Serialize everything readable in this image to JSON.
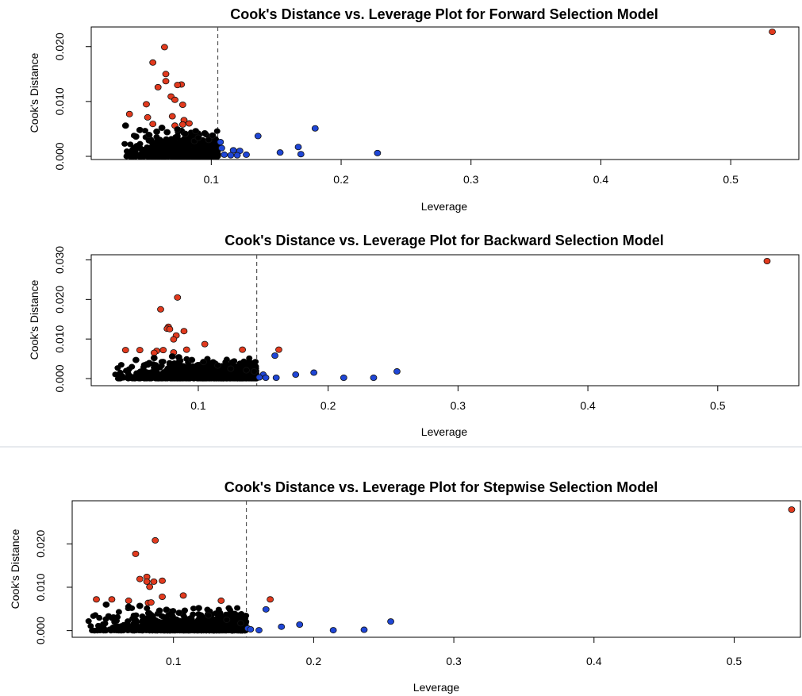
{
  "colors": {
    "point_fill": "#000000",
    "point_stroke": "#000000",
    "high_cook": "#e23a1e",
    "high_leverage": "#1f46d6",
    "cutoff_line": "#555555",
    "separator": "#cfd6dc"
  },
  "chart_data": [
    {
      "type": "scatter",
      "title": "Cook's Distance vs. Leverage Plot for Forward Selection Model",
      "xlabel": "Leverage",
      "ylabel": "Cook's Distance",
      "xlim": [
        0.01,
        0.55
      ],
      "ylim": [
        0.0,
        0.023
      ],
      "x_ticks": [
        0.1,
        0.2,
        0.3,
        0.4,
        0.5
      ],
      "x_tick_labels": [
        "0.1",
        "0.2",
        "0.3",
        "0.4",
        "0.5"
      ],
      "y_ticks": [
        0.0,
        0.01,
        0.02
      ],
      "y_tick_labels": [
        "0.000",
        "0.010",
        "0.020"
      ],
      "leverage_cutoff": 0.105,
      "grid": false,
      "bulk_cloud": {
        "x_range": [
          0.03,
          0.105
        ],
        "y_range": [
          0.0,
          0.005
        ],
        "count": 700
      },
      "series": [
        {
          "group": "high_cook",
          "points": [
            [
              0.532,
              0.0227
            ],
            [
              0.064,
              0.0199
            ],
            [
              0.055,
              0.0171
            ],
            [
              0.065,
              0.015
            ],
            [
              0.065,
              0.0137
            ],
            [
              0.077,
              0.0131
            ],
            [
              0.074,
              0.013
            ],
            [
              0.059,
              0.0126
            ],
            [
              0.069,
              0.0109
            ],
            [
              0.072,
              0.0103
            ],
            [
              0.078,
              0.0094
            ],
            [
              0.05,
              0.0095
            ],
            [
              0.037,
              0.0077
            ],
            [
              0.07,
              0.0073
            ],
            [
              0.051,
              0.0071
            ],
            [
              0.079,
              0.0066
            ],
            [
              0.083,
              0.006
            ],
            [
              0.055,
              0.0059
            ],
            [
              0.078,
              0.0058
            ],
            [
              0.072,
              0.0056
            ]
          ]
        },
        {
          "group": "high_leverage",
          "points": [
            [
              0.18,
              0.0051
            ],
            [
              0.136,
              0.0037
            ],
            [
              0.167,
              0.0017
            ],
            [
              0.107,
              0.0026
            ],
            [
              0.108,
              0.0015
            ],
            [
              0.117,
              0.0011
            ],
            [
              0.122,
              0.001
            ],
            [
              0.153,
              0.0007
            ],
            [
              0.228,
              0.0006
            ],
            [
              0.169,
              0.0004
            ],
            [
              0.11,
              0.0003
            ],
            [
              0.115,
              0.0002
            ],
            [
              0.127,
              0.0003
            ],
            [
              0.12,
              0.0002
            ]
          ]
        },
        {
          "group": "normal",
          "points": [
            [
              0.034,
              0.0056
            ],
            [
              0.045,
              0.0048
            ],
            [
              0.062,
              0.0052
            ],
            [
              0.058,
              0.0045
            ],
            [
              0.066,
              0.0044
            ],
            [
              0.074,
              0.0049
            ],
            [
              0.088,
              0.0046
            ],
            [
              0.095,
              0.0042
            ],
            [
              0.101,
              0.0038
            ],
            [
              0.098,
              0.003
            ],
            [
              0.052,
              0.0039
            ],
            [
              0.042,
              0.0036
            ],
            [
              0.087,
              0.0028
            ],
            [
              0.09,
              0.0034
            ],
            [
              0.08,
              0.0041
            ]
          ]
        }
      ]
    },
    {
      "type": "scatter",
      "title": "Cook's Distance vs. Leverage Plot for Backward Selection Model",
      "xlabel": "Leverage",
      "ylabel": "Cook's Distance",
      "xlim": [
        0.02,
        0.56
      ],
      "ylim": [
        -0.001,
        0.0305
      ],
      "x_ticks": [
        0.1,
        0.2,
        0.3,
        0.4,
        0.5
      ],
      "x_tick_labels": [
        "0.1",
        "0.2",
        "0.3",
        "0.4",
        "0.5"
      ],
      "y_ticks": [
        0.0,
        0.01,
        0.02,
        0.03
      ],
      "y_tick_labels": [
        "0.000",
        "0.010",
        "0.020",
        "0.030"
      ],
      "leverage_cutoff": 0.145,
      "grid": false,
      "bulk_cloud": {
        "x_range": [
          0.033,
          0.145
        ],
        "y_range": [
          0.0,
          0.0055
        ],
        "count": 850
      },
      "series": [
        {
          "group": "high_cook",
          "points": [
            [
              0.538,
              0.0297
            ],
            [
              0.084,
              0.0205
            ],
            [
              0.071,
              0.0175
            ],
            [
              0.077,
              0.0131
            ],
            [
              0.076,
              0.0126
            ],
            [
              0.078,
              0.0125
            ],
            [
              0.089,
              0.012
            ],
            [
              0.083,
              0.0109
            ],
            [
              0.081,
              0.0099
            ],
            [
              0.105,
              0.0087
            ],
            [
              0.134,
              0.0073
            ],
            [
              0.162,
              0.0073
            ],
            [
              0.044,
              0.0072
            ],
            [
              0.055,
              0.0072
            ],
            [
              0.068,
              0.007
            ],
            [
              0.073,
              0.0072
            ],
            [
              0.081,
              0.0066
            ],
            [
              0.091,
              0.0073
            ],
            [
              0.066,
              0.0065
            ]
          ]
        },
        {
          "group": "high_leverage",
          "points": [
            [
              0.253,
              0.0018
            ],
            [
              0.159,
              0.0058
            ],
            [
              0.189,
              0.0015
            ],
            [
              0.175,
              0.001
            ],
            [
              0.15,
              0.001
            ],
            [
              0.16,
              0.0002
            ],
            [
              0.212,
              0.0002
            ],
            [
              0.235,
              0.0002
            ],
            [
              0.147,
              0.0003
            ],
            [
              0.152,
              0.0002
            ]
          ]
        },
        {
          "group": "normal",
          "points": [
            [
              0.052,
              0.0047
            ],
            [
              0.066,
              0.0052
            ],
            [
              0.08,
              0.0056
            ],
            [
              0.095,
              0.0047
            ],
            [
              0.104,
              0.0042
            ],
            [
              0.115,
              0.0033
            ],
            [
              0.125,
              0.0025
            ],
            [
              0.137,
              0.0021
            ],
            [
              0.143,
              0.0018
            ],
            [
              0.085,
              0.0054
            ]
          ]
        }
      ]
    },
    {
      "type": "scatter",
      "title": "Cook's Distance vs. Leverage Plot for Stepwise Selection Model",
      "xlabel": "Leverage",
      "ylabel": "Cook's Distance",
      "xlim": [
        0.03,
        0.545
      ],
      "ylim": [
        -0.0008,
        0.0292
      ],
      "x_ticks": [
        0.1,
        0.2,
        0.3,
        0.4,
        0.5
      ],
      "x_tick_labels": [
        "0.1",
        "0.2",
        "0.3",
        "0.4",
        "0.5"
      ],
      "y_ticks": [
        0.0,
        0.01,
        0.02
      ],
      "y_tick_labels": [
        "0.000",
        "0.010",
        "0.020"
      ],
      "leverage_cutoff": 0.152,
      "grid": false,
      "bulk_cloud": {
        "x_range": [
          0.035,
          0.152
        ],
        "y_range": [
          0.0,
          0.0055
        ],
        "count": 850
      },
      "series": [
        {
          "group": "high_cook",
          "points": [
            [
              0.541,
              0.0279
            ],
            [
              0.087,
              0.0208
            ],
            [
              0.073,
              0.0177
            ],
            [
              0.081,
              0.0124
            ],
            [
              0.076,
              0.0119
            ],
            [
              0.092,
              0.0115
            ],
            [
              0.081,
              0.0113
            ],
            [
              0.086,
              0.0113
            ],
            [
              0.083,
              0.0101
            ],
            [
              0.107,
              0.0081
            ],
            [
              0.092,
              0.0078
            ],
            [
              0.045,
              0.0072
            ],
            [
              0.056,
              0.0072
            ],
            [
              0.068,
              0.0069
            ],
            [
              0.134,
              0.0069
            ],
            [
              0.169,
              0.0072
            ],
            [
              0.082,
              0.0064
            ],
            [
              0.084,
              0.0065
            ]
          ]
        },
        {
          "group": "high_leverage",
          "points": [
            [
              0.255,
              0.0021
            ],
            [
              0.166,
              0.0049
            ],
            [
              0.19,
              0.0014
            ],
            [
              0.177,
              0.0009
            ],
            [
              0.153,
              0.0005
            ],
            [
              0.161,
              0.0001
            ],
            [
              0.214,
              0.0001
            ],
            [
              0.236,
              0.0002
            ],
            [
              0.155,
              0.0003
            ]
          ]
        },
        {
          "group": "normal",
          "points": [
            [
              0.052,
              0.006
            ],
            [
              0.068,
              0.0055
            ],
            [
              0.076,
              0.0057
            ],
            [
              0.095,
              0.0048
            ],
            [
              0.104,
              0.0041
            ],
            [
              0.118,
              0.0052
            ],
            [
              0.125,
              0.0035
            ],
            [
              0.138,
              0.0025
            ],
            [
              0.148,
              0.0017
            ],
            [
              0.09,
              0.0046
            ]
          ]
        }
      ]
    }
  ]
}
